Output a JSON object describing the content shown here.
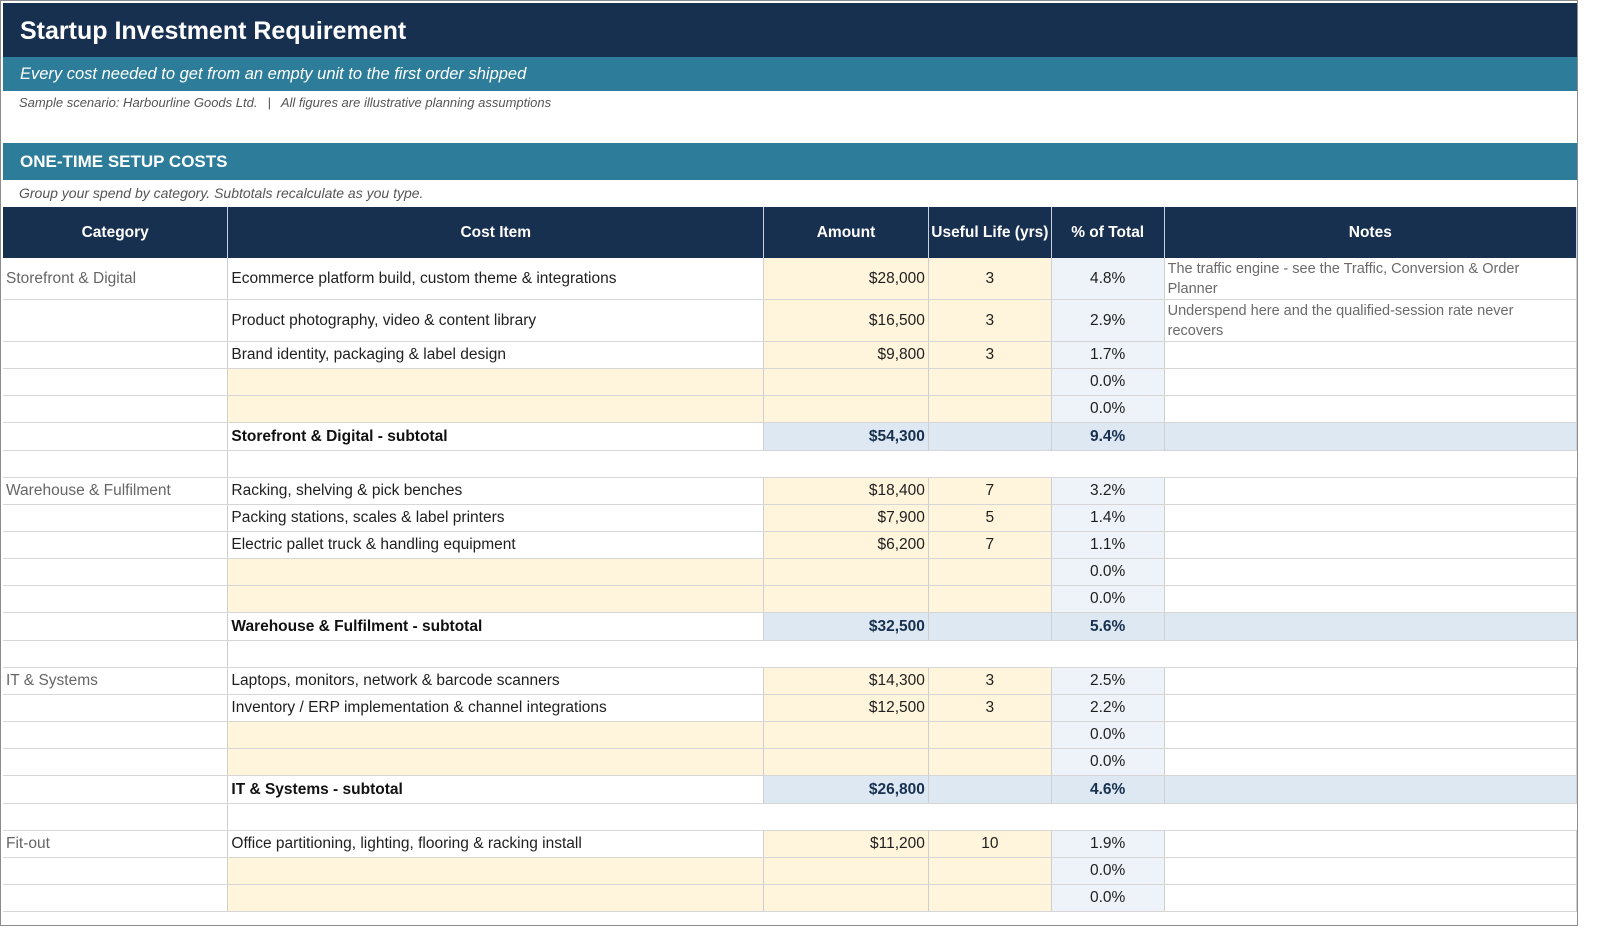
{
  "header": {
    "title": "Startup Investment Requirement",
    "subtitle": "Every cost needed to get from an empty unit to the first order shipped",
    "scenario": "Sample scenario: Harbourline Goods Ltd.",
    "separator": "|",
    "disclaimer": "All figures are illustrative planning assumptions"
  },
  "section": {
    "title": "ONE-TIME SETUP COSTS",
    "note": "Group your spend by category. Subtotals recalculate as you type."
  },
  "columns": {
    "category": "Category",
    "item": "Cost Item",
    "amount": "Amount",
    "life": "Useful Life (yrs)",
    "pct": "% of Total",
    "notes": "Notes"
  },
  "groups": {
    "storefront": {
      "category": "Storefront & Digital",
      "rows": [
        {
          "item": "Ecommerce platform build, custom theme & integrations",
          "amount": "$28,000",
          "life": "3",
          "pct": "4.8%",
          "notes": "The traffic engine - see the Traffic, Conversion & Order Planner"
        },
        {
          "item": "Product photography, video & content library",
          "amount": "$16,500",
          "life": "3",
          "pct": "2.9%",
          "notes": "Underspend here and the qualified-session rate never recovers"
        },
        {
          "item": "Brand identity, packaging & label design",
          "amount": "$9,800",
          "life": "3",
          "pct": "1.7%",
          "notes": ""
        },
        {
          "item": "",
          "amount": "",
          "life": "",
          "pct": "0.0%",
          "notes": ""
        },
        {
          "item": "",
          "amount": "",
          "life": "",
          "pct": "0.0%",
          "notes": ""
        }
      ],
      "subtotal": {
        "label": "Storefront & Digital - subtotal",
        "amount": "$54,300",
        "pct": "9.4%"
      }
    },
    "warehouse": {
      "category": "Warehouse & Fulfilment",
      "rows": [
        {
          "item": "Racking, shelving & pick benches",
          "amount": "$18,400",
          "life": "7",
          "pct": "3.2%"
        },
        {
          "item": "Packing stations, scales & label printers",
          "amount": "$7,900",
          "life": "5",
          "pct": "1.4%"
        },
        {
          "item": "Electric pallet truck & handling equipment",
          "amount": "$6,200",
          "life": "7",
          "pct": "1.1%"
        },
        {
          "item": "",
          "amount": "",
          "life": "",
          "pct": "0.0%"
        },
        {
          "item": "",
          "amount": "",
          "life": "",
          "pct": "0.0%"
        }
      ],
      "subtotal": {
        "label": "Warehouse & Fulfilment - subtotal",
        "amount": "$32,500",
        "pct": "5.6%"
      }
    },
    "it": {
      "category": "IT & Systems",
      "rows": [
        {
          "item": "Laptops, monitors, network & barcode scanners",
          "amount": "$14,300",
          "life": "3",
          "pct": "2.5%"
        },
        {
          "item": "Inventory / ERP implementation & channel integrations",
          "amount": "$12,500",
          "life": "3",
          "pct": "2.2%"
        },
        {
          "item": "",
          "amount": "",
          "life": "",
          "pct": "0.0%"
        },
        {
          "item": "",
          "amount": "",
          "life": "",
          "pct": "0.0%"
        }
      ],
      "subtotal": {
        "label": "IT & Systems - subtotal",
        "amount": "$26,800",
        "pct": "4.6%"
      }
    },
    "fitout": {
      "category": "Fit-out",
      "rows": [
        {
          "item": "Office partitioning, lighting, flooring & racking install",
          "amount": "$11,200",
          "life": "10",
          "pct": "1.9%"
        },
        {
          "item": "",
          "amount": "",
          "life": "",
          "pct": "0.0%"
        },
        {
          "item": "",
          "amount": "",
          "life": "",
          "pct": "0.0%"
        }
      ]
    }
  },
  "colors": {
    "header_navy": "#18304f",
    "header_teal": "#2d7d9a",
    "input_cell": "#fff4dc",
    "pct_cell": "#edf3f8",
    "subtotal_cell": "#dde8f2"
  }
}
